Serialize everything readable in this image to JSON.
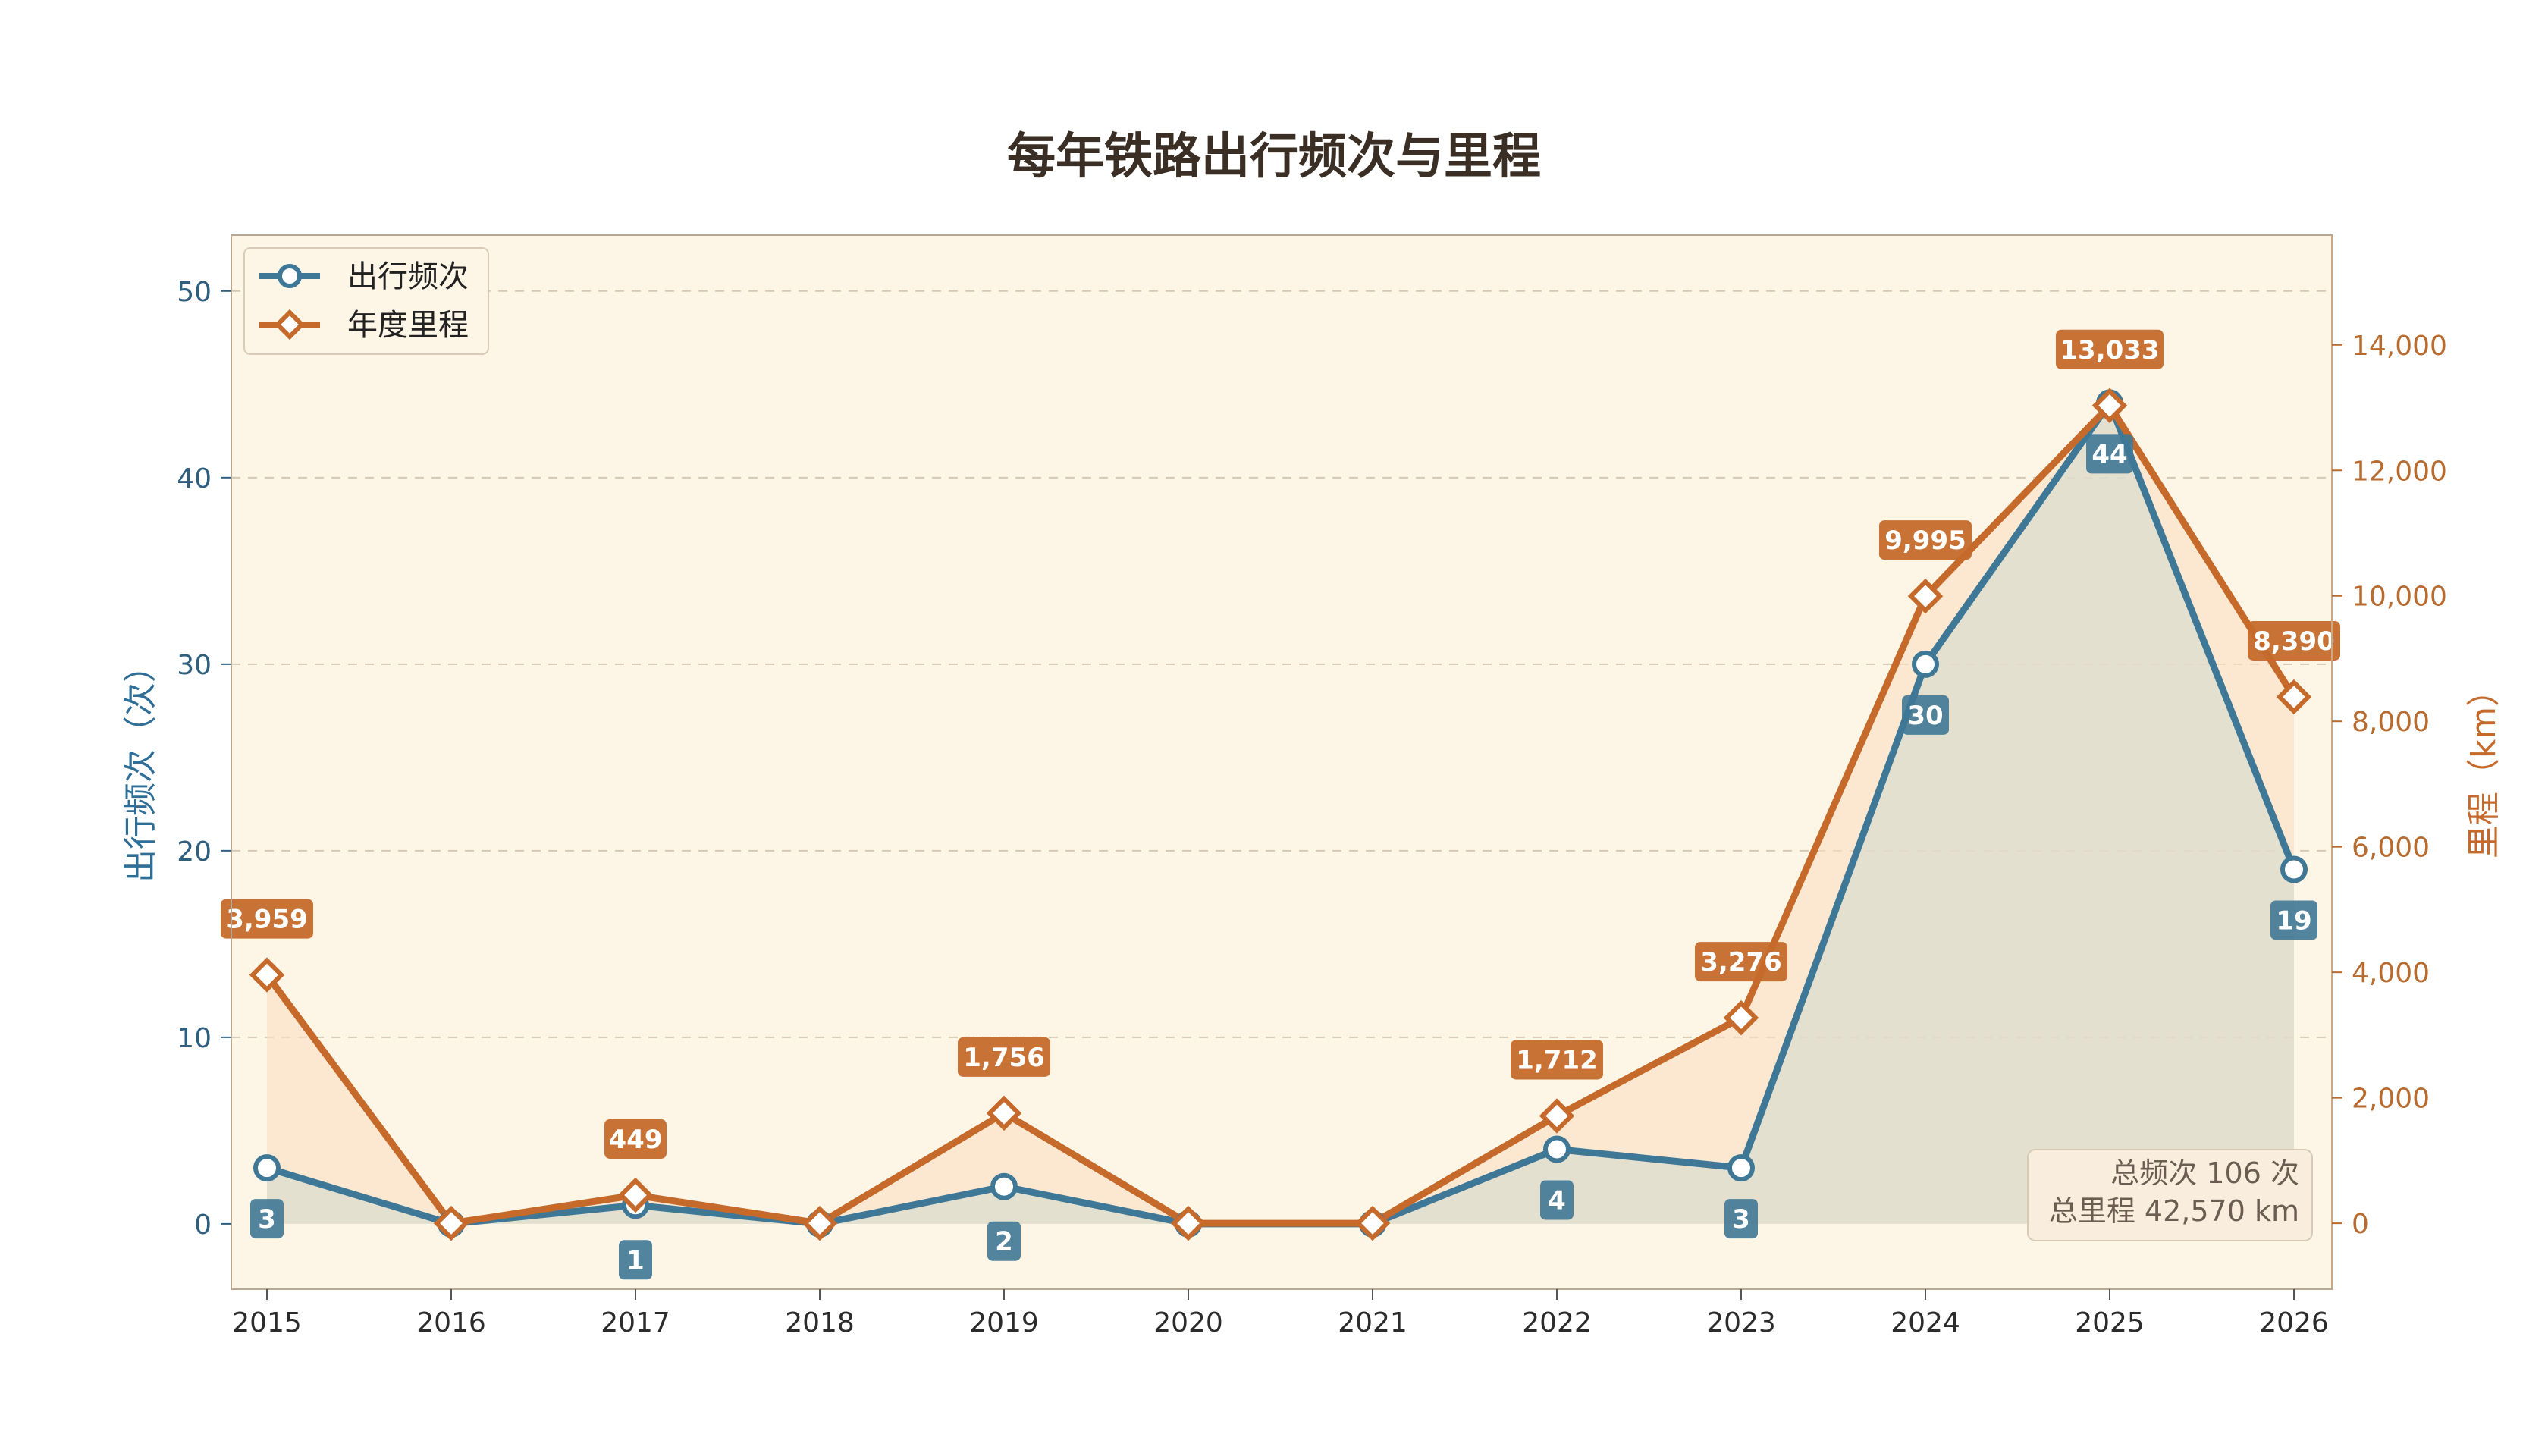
{
  "chart_data": {
    "type": "line",
    "title": "每年铁路出行频次与里程",
    "categories": [
      "2015",
      "2016",
      "2017",
      "2018",
      "2019",
      "2020",
      "2021",
      "2022",
      "2023",
      "2024",
      "2025",
      "2026"
    ],
    "y_left": {
      "label": "出行频次（次）",
      "ticks": [
        "0",
        "10",
        "20",
        "30",
        "40",
        "50"
      ],
      "range": [
        -3.5,
        53
      ],
      "color": "#3f7896"
    },
    "y_right": {
      "label": "里程（km）",
      "ticks": [
        "0",
        "2,000",
        "4,000",
        "6,000",
        "8,000",
        "10,000",
        "12,000",
        "14,000"
      ],
      "range": [
        -1050,
        15750
      ],
      "color": "#c56a2b"
    },
    "grid": "horizontal dashed",
    "legend_position": "top-left",
    "series": [
      {
        "name": "出行频次",
        "axis": "left",
        "marker": "circle",
        "color": "#3f7896",
        "values": [
          3,
          0,
          1,
          0,
          2,
          0,
          0,
          4,
          3,
          30,
          44,
          19
        ],
        "labels": [
          "3",
          "",
          "1",
          "",
          "2",
          "",
          "",
          "4",
          "3",
          "30",
          "44",
          "19"
        ]
      },
      {
        "name": "年度里程",
        "axis": "right",
        "marker": "diamond",
        "color": "#c56a2b",
        "values": [
          3959,
          0,
          449,
          0,
          1756,
          0,
          0,
          1712,
          3276,
          9995,
          13033,
          8390
        ],
        "labels": [
          "3,959",
          "",
          "449",
          "",
          "1,756",
          "",
          "",
          "1,712",
          "3,276",
          "9,995",
          "13,033",
          "8,390"
        ]
      }
    ],
    "summary": {
      "trips": "总频次 106 次",
      "distance": "总里程 42,570 km"
    }
  }
}
